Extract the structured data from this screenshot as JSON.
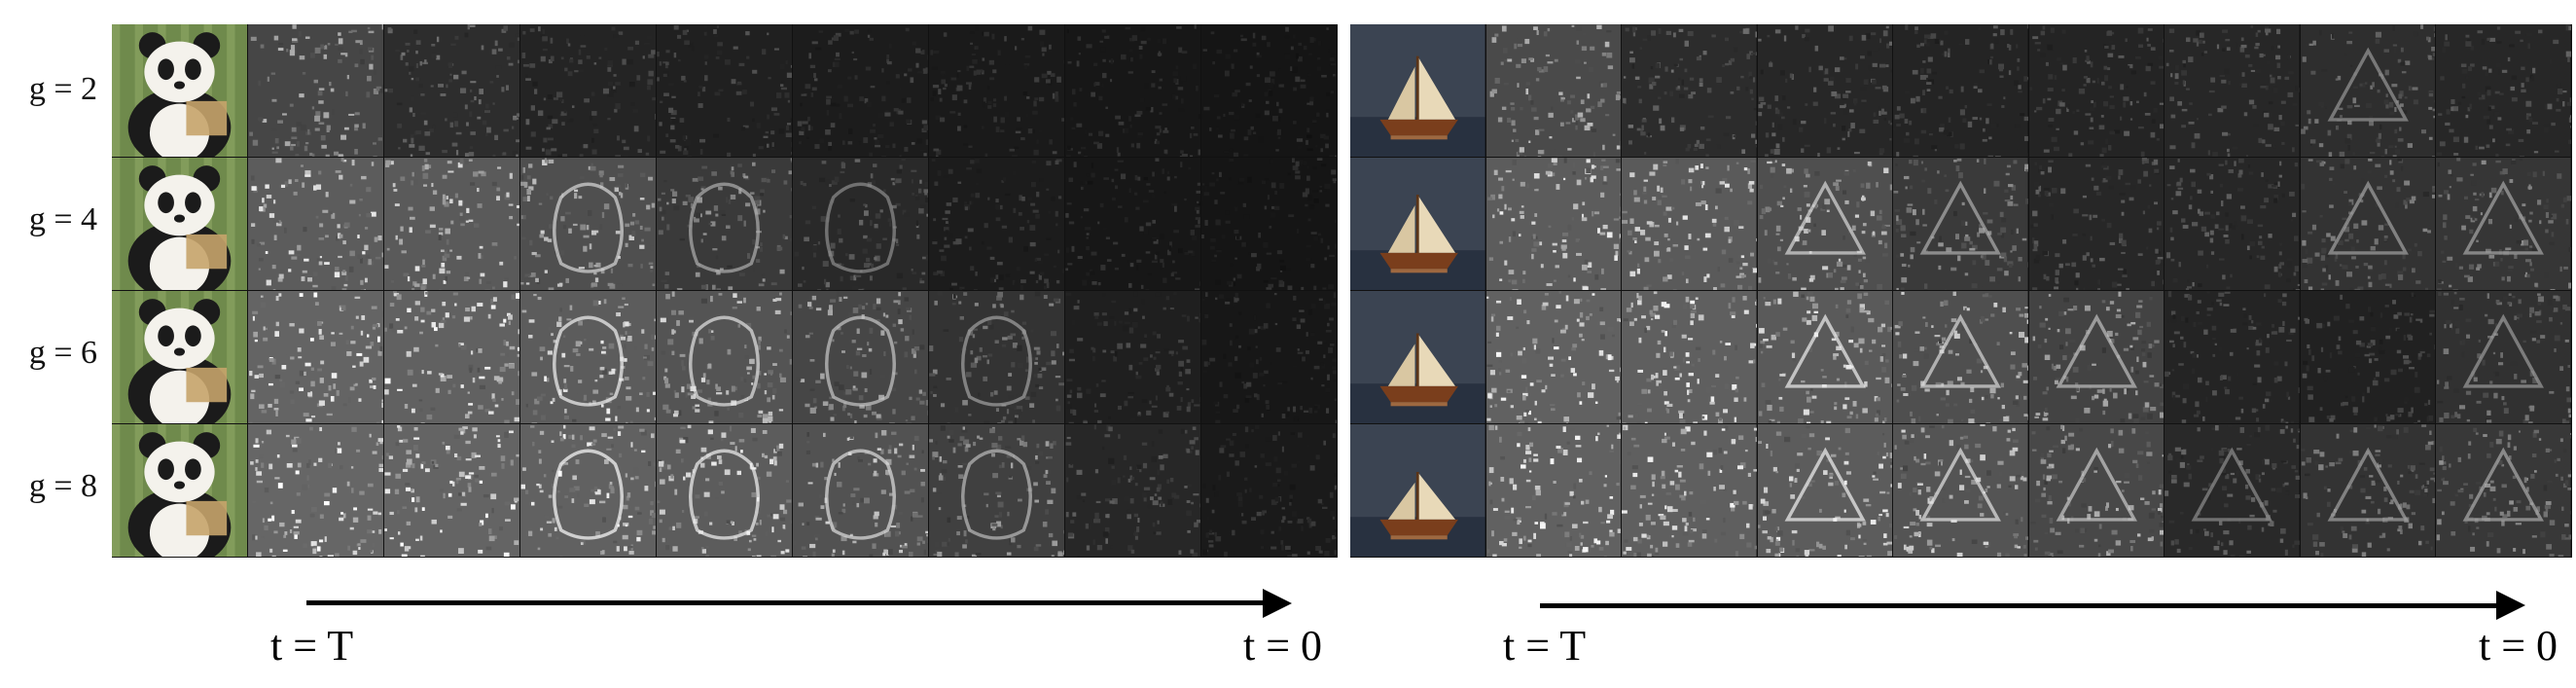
{
  "figure": {
    "row_labels": [
      "g = 2",
      "g = 4",
      "g = 6",
      "g = 8"
    ],
    "axis_start_label": "t = T",
    "axis_end_label": "t = 0",
    "panels": [
      {
        "subject": "panda",
        "thumb_colors": {
          "bg": "#6f8a4c",
          "fur": "#f4f2ec",
          "dark": "#1b1b1b",
          "prop": "#c7a46c"
        },
        "map_brightness": [
          [
            0.55,
            0.35,
            0.28,
            0.25,
            0.22,
            0.2,
            0.18,
            0.16
          ],
          [
            0.72,
            0.7,
            0.62,
            0.45,
            0.32,
            0.22,
            0.18,
            0.16
          ],
          [
            0.78,
            0.76,
            0.72,
            0.66,
            0.55,
            0.4,
            0.24,
            0.18
          ],
          [
            0.8,
            0.78,
            0.76,
            0.72,
            0.64,
            0.5,
            0.3,
            0.2
          ]
        ]
      },
      {
        "subject": "sailboat",
        "thumb_colors": {
          "bg": "#3b4452",
          "fur": "#e8d9b8",
          "dark": "#7a3e1c",
          "prop": "#d08040"
        },
        "map_brightness": [
          [
            0.58,
            0.34,
            0.3,
            0.28,
            0.28,
            0.3,
            0.36,
            0.3
          ],
          [
            0.72,
            0.7,
            0.62,
            0.45,
            0.3,
            0.3,
            0.4,
            0.42
          ],
          [
            0.76,
            0.74,
            0.7,
            0.62,
            0.52,
            0.28,
            0.26,
            0.38
          ],
          [
            0.76,
            0.74,
            0.72,
            0.66,
            0.56,
            0.32,
            0.4,
            0.44
          ]
        ]
      }
    ]
  }
}
